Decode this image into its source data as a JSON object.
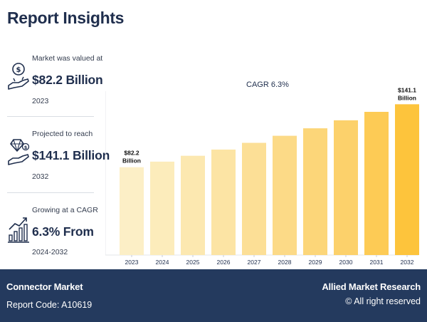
{
  "header": {
    "title": "Report Insights"
  },
  "stats": [
    {
      "label": "Market was valued at",
      "value": "$82.2 Billion",
      "year": "2023",
      "icon": "money-hand-icon"
    },
    {
      "label": "Projected to reach",
      "value": "$141.1 Billion",
      "year": "2032",
      "icon": "diamond-hand-icon"
    },
    {
      "label": "Growing at a CAGR",
      "value": "6.3% From",
      "year": "2024-2032",
      "icon": "growth-chart-icon"
    }
  ],
  "chart_data": {
    "type": "bar",
    "title": "CAGR 6.3%",
    "categories": [
      "2023",
      "2024",
      "2025",
      "2026",
      "2027",
      "2028",
      "2029",
      "2030",
      "2031",
      "2032"
    ],
    "values": [
      82.2,
      87.4,
      92.9,
      98.7,
      105.0,
      111.6,
      118.6,
      126.1,
      134.0,
      141.1
    ],
    "data_labels": [
      {
        "index": 0,
        "line1": "$82.2",
        "line2": "Billion"
      },
      {
        "index": 9,
        "line1": "$141.1",
        "line2": "Billion"
      }
    ],
    "xlabel": "",
    "ylabel": "",
    "ylim": [
      0,
      160
    ],
    "grid": false,
    "colors": [
      "#fcefc6",
      "#fcecbb",
      "#fce8b0",
      "#fce4a4",
      "#fcdf96",
      "#fcda87",
      "#fcd679",
      "#fcd16b",
      "#fdcb55",
      "#fdc43c"
    ]
  },
  "footer": {
    "market": "Connector Market",
    "code": "Report Code: A10619",
    "brand": "Allied Market Research",
    "rights": "© All right reserved"
  }
}
